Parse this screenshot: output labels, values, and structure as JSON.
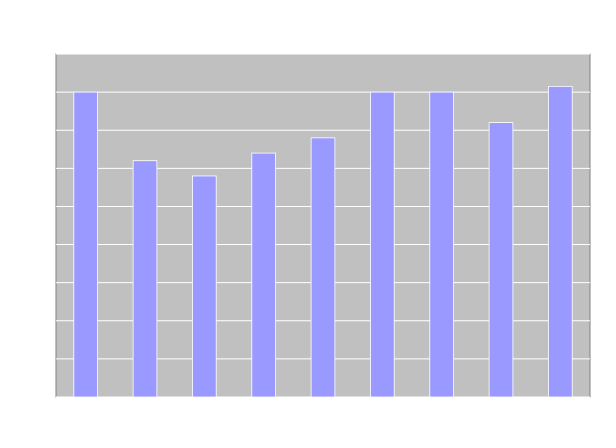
{
  "chart_data": {
    "type": "bar",
    "categories": [
      null,
      null,
      null,
      null,
      null,
      null,
      null,
      null,
      null
    ],
    "values": [
      8,
      6.2,
      5.8,
      6.4,
      6.8,
      8,
      8,
      7.2,
      8.15
    ],
    "color": "#9999ff",
    "ylim": [
      0,
      9
    ],
    "yticks": [
      0,
      1,
      2,
      3,
      4,
      5,
      6,
      7,
      8,
      9
    ],
    "grid": true
  }
}
